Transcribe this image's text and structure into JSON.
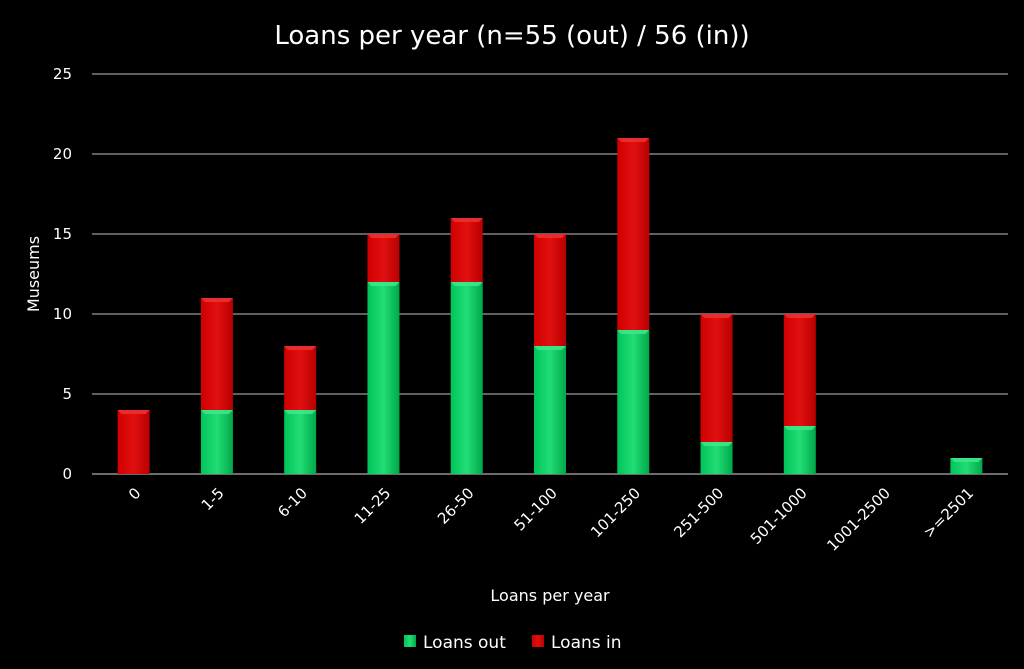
{
  "chart_data": {
    "type": "bar",
    "stacked": true,
    "title": "Loans per year (n=55 (out) / 56 (in))",
    "xlabel": "Loans per year",
    "ylabel": "Museums",
    "ylim": [
      0,
      25
    ],
    "yticks": [
      0,
      5,
      10,
      15,
      20,
      25
    ],
    "grid": true,
    "legend_position": "bottom",
    "categories": [
      "0",
      "1-5",
      "6-10",
      "11-25",
      "26-50",
      "51-100",
      "101-250",
      "251-500",
      "501-1000",
      "1001-2500",
      ">=2501"
    ],
    "series": [
      {
        "name": "Loans out",
        "color": "#00b050",
        "values": [
          0,
          4,
          4,
          12,
          12,
          8,
          9,
          2,
          3,
          0,
          1
        ]
      },
      {
        "name": "Loans in",
        "color": "#c00000",
        "values": [
          4,
          7,
          4,
          3,
          4,
          7,
          12,
          8,
          7,
          0,
          0
        ]
      }
    ]
  }
}
